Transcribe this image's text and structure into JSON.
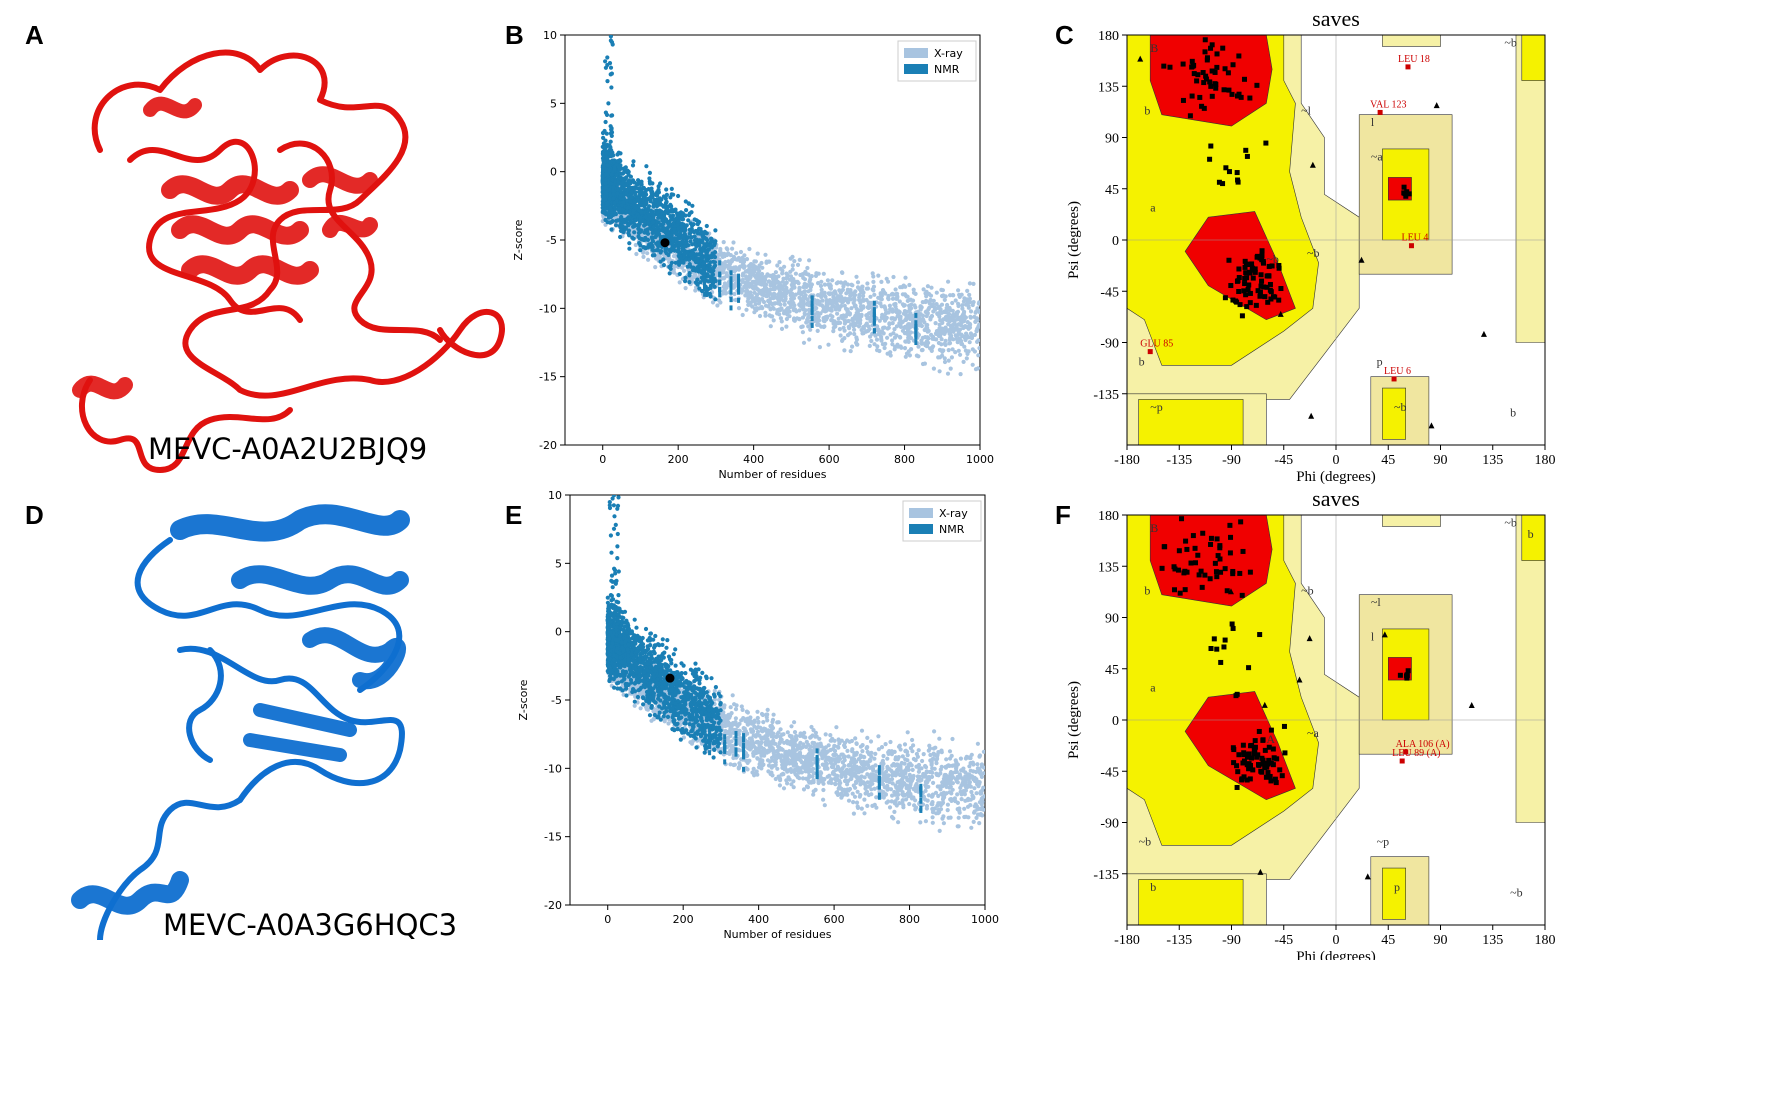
{
  "panels": {
    "A": {
      "letter": "A",
      "label": "MEVC-A0A2U2BJQ9",
      "color": "#e0120f"
    },
    "B": {
      "letter": "B"
    },
    "C": {
      "letter": "C"
    },
    "D": {
      "letter": "D",
      "label": "MEVC-A0A3G6HQC3",
      "color": "#0f6fd0"
    },
    "E": {
      "letter": "E"
    },
    "F": {
      "letter": "F"
    }
  },
  "chart_data": [
    {
      "id": "B",
      "type": "scatter",
      "title": "",
      "xlabel": "Number of residues",
      "ylabel": "Z-score",
      "xlim": [
        -100,
        1000
      ],
      "ylim": [
        -20,
        10
      ],
      "xticks": [
        "0",
        "200",
        "400",
        "600",
        "800",
        "1000"
      ],
      "yticks": [
        "10",
        "5",
        "0",
        "-5",
        "-10",
        "-15",
        "-20"
      ],
      "legend": {
        "position": "top-right",
        "entries": [
          "X-ray",
          "NMR"
        ]
      },
      "series_colors": {
        "X-ray": "#a8c4e0",
        "NMR": "#1a7fb5"
      },
      "highlight_point": {
        "x": 165,
        "y": -5.2
      }
    },
    {
      "id": "C",
      "type": "scatter",
      "title": "saves",
      "xlabel": "Phi (degrees)",
      "ylabel": "Psi (degrees)",
      "xlim": [
        -180,
        180
      ],
      "ylim": [
        -180,
        180
      ],
      "xticks": [
        "-180",
        "-135",
        "-90",
        "-45",
        "0",
        "45",
        "90",
        "135",
        "180"
      ],
      "yticks": [
        "180",
        "135",
        "90",
        "45",
        "0",
        "-45",
        "-90",
        "-135"
      ],
      "region_labels": [
        "B",
        "b",
        "a",
        "~b",
        "~l",
        "l",
        "~a",
        "~b",
        "b",
        "~p",
        "p",
        "~b",
        "~b",
        "b"
      ],
      "annotations": [
        {
          "text": "LEU 18",
          "phi": 62,
          "psi": 152
        },
        {
          "text": "VAL 123",
          "phi": 38,
          "psi": 112
        },
        {
          "text": "LEU 4",
          "phi": 65,
          "psi": -5
        },
        {
          "text": "GLU 85",
          "phi": -160,
          "psi": -98
        },
        {
          "text": "LEU 6",
          "phi": 50,
          "psi": -122
        }
      ]
    },
    {
      "id": "E",
      "type": "scatter",
      "title": "",
      "xlabel": "Number of residues",
      "ylabel": "Z-score",
      "xlim": [
        -100,
        1000
      ],
      "ylim": [
        -20,
        10
      ],
      "xticks": [
        "0",
        "200",
        "400",
        "600",
        "800",
        "1000"
      ],
      "yticks": [
        "10",
        "5",
        "0",
        "-5",
        "-10",
        "-15",
        "-20"
      ],
      "legend": {
        "position": "top-right",
        "entries": [
          "X-ray",
          "NMR"
        ]
      },
      "series_colors": {
        "X-ray": "#a8c4e0",
        "NMR": "#1a7fb5"
      },
      "highlight_point": {
        "x": 165,
        "y": -3.4
      }
    },
    {
      "id": "F",
      "type": "scatter",
      "title": "saves",
      "xlabel": "Phi (degrees)",
      "ylabel": "Psi (degrees)",
      "xlim": [
        -180,
        180
      ],
      "ylim": [
        -180,
        180
      ],
      "xticks": [
        "-180",
        "-135",
        "-90",
        "-45",
        "0",
        "45",
        "90",
        "135",
        "180"
      ],
      "yticks": [
        "180",
        "135",
        "90",
        "45",
        "0",
        "-45",
        "-90",
        "-135"
      ],
      "region_labels": [
        "B",
        "b",
        "a",
        "A",
        "~b",
        "~l",
        "l",
        "~a",
        "~b",
        "b",
        "~p",
        "p",
        "~b",
        "~b",
        "b"
      ],
      "annotations": [
        {
          "text": "ALA 106 (A)",
          "phi": 60,
          "psi": -28
        },
        {
          "text": "LEU 89 (A)",
          "phi": 57,
          "psi": -36
        }
      ]
    }
  ]
}
